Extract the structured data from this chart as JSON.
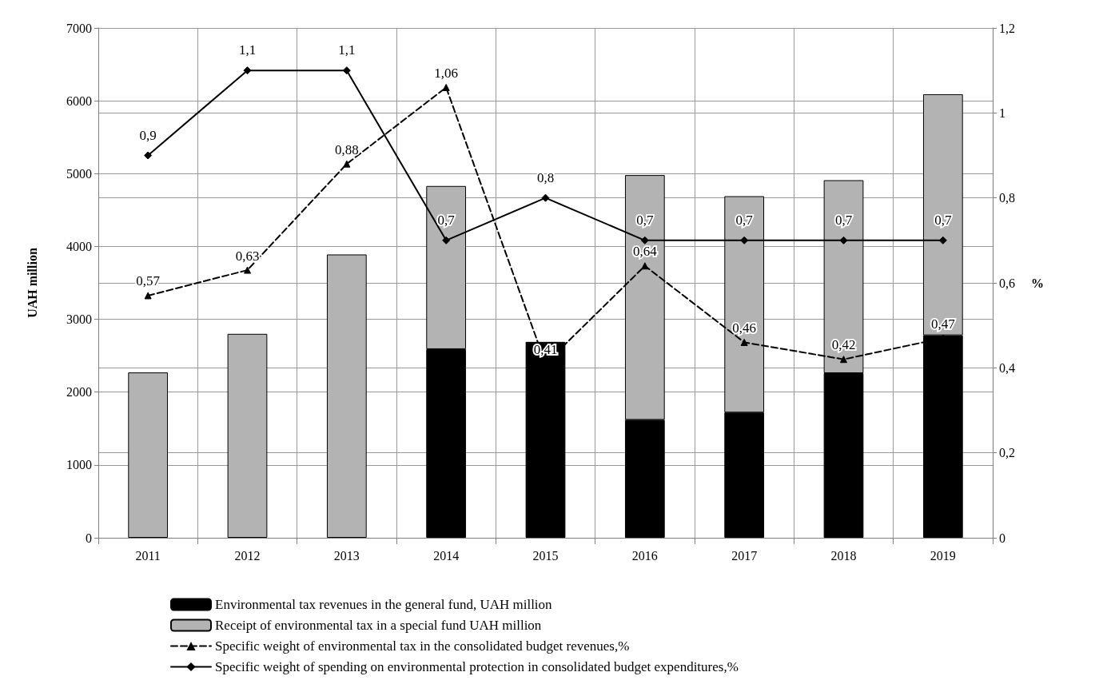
{
  "chart_data": {
    "type": "bar",
    "stacked": true,
    "categories": [
      "2011",
      "2012",
      "2013",
      "2014",
      "2015",
      "2016",
      "2017",
      "2018",
      "2019"
    ],
    "ylabel": "UAH million",
    "y2label": "%",
    "ylim": [
      0,
      7000
    ],
    "yticks": [
      0,
      1000,
      2000,
      3000,
      4000,
      5000,
      6000,
      7000
    ],
    "y2lim": [
      0,
      1.2
    ],
    "y2ticks": [
      0,
      {
        "value": 0.2,
        "label": "0,2"
      },
      {
        "value": 0.4,
        "label": "0,4"
      },
      {
        "value": 0.6,
        "label": "0,6"
      },
      {
        "value": 0.8,
        "label": "0,8"
      },
      1,
      {
        "value": 1.2,
        "label": "1,2"
      }
    ],
    "grid": true,
    "legend": "bottom",
    "series": [
      {
        "name": "Environmental tax revenues in the general fund, UAH million",
        "color": "#000000",
        "values": [
          null,
          null,
          null,
          2590,
          2690,
          1620,
          1720,
          2260,
          2780
        ]
      },
      {
        "name": "Receipt of environmental tax in a special fund UAH million",
        "color": "#b3b3b3",
        "values": [
          2270,
          2800,
          3890,
          2240,
          null,
          3360,
          2970,
          2650,
          3310
        ]
      },
      {
        "name": "Specific weight of environmental tax in the consolidated budget revenues,%",
        "type": "line",
        "axis": "y2",
        "color": "#000000",
        "line_style": "dashed",
        "marker": "triangle",
        "values": [
          0.57,
          0.63,
          0.88,
          1.06,
          0.41,
          0.64,
          0.46,
          0.42,
          0.47
        ],
        "value_labels": [
          "0,57",
          "0,63",
          "0,88",
          "1,06",
          "0,41",
          "0,64",
          "0,46",
          "0,42",
          "0,47"
        ]
      },
      {
        "name": "Specific weight of spending on environmental protection in consolidated budget expenditures,%",
        "type": "line",
        "axis": "y2",
        "color": "#000000",
        "line_style": "solid",
        "marker": "diamond",
        "values": [
          0.9,
          1.1,
          1.1,
          0.7,
          0.8,
          0.7,
          0.7,
          0.7,
          0.7
        ],
        "value_labels": [
          "0,9",
          "1,1",
          "1,1",
          "0,7",
          "0,8",
          "0,7",
          "0,7",
          "0,7",
          "0,7"
        ]
      }
    ]
  }
}
